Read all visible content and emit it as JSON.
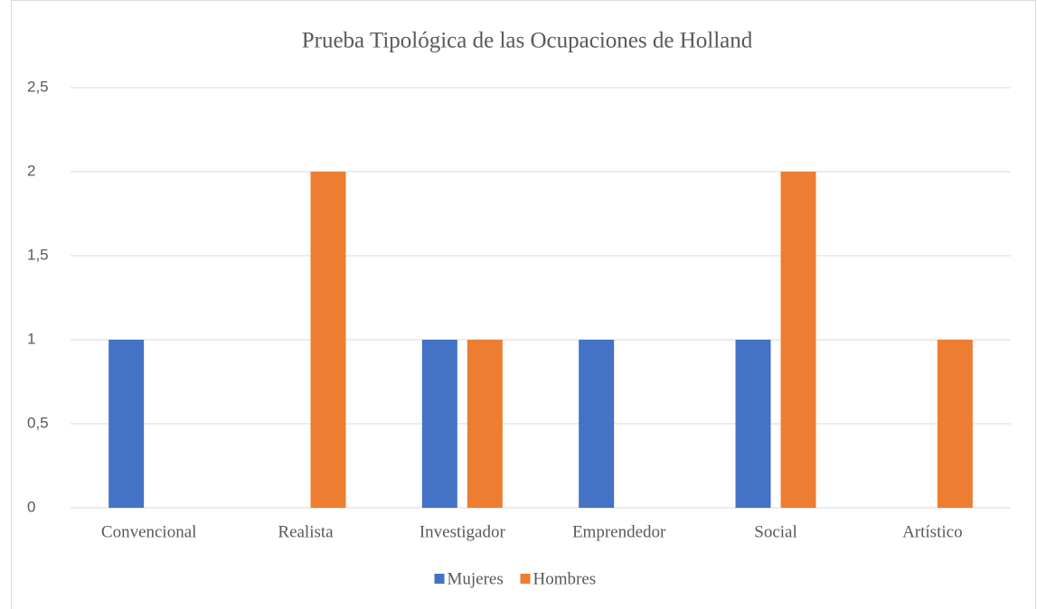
{
  "chart_data": {
    "type": "bar",
    "title": "Prueba Tipológica de las Ocupaciones de Holland",
    "categories": [
      "Convencional",
      "Realista",
      "Investigador",
      "Emprendedor",
      "Social",
      "Artístico"
    ],
    "series": [
      {
        "name": "Mujeres",
        "color": "#4472c4",
        "values": [
          1,
          0,
          1,
          1,
          1,
          0
        ]
      },
      {
        "name": "Hombres",
        "color": "#ed7d31",
        "values": [
          0,
          2,
          1,
          0,
          2,
          1
        ]
      }
    ],
    "ylim": [
      0,
      2.5
    ],
    "yticks": [
      0,
      {
        "value": 0.5,
        "label": "0,5"
      },
      1,
      {
        "value": 1.5,
        "label": "1,5"
      },
      2,
      {
        "value": 2.5,
        "label": "2,5"
      }
    ],
    "grid": true,
    "legend": "bottom"
  }
}
